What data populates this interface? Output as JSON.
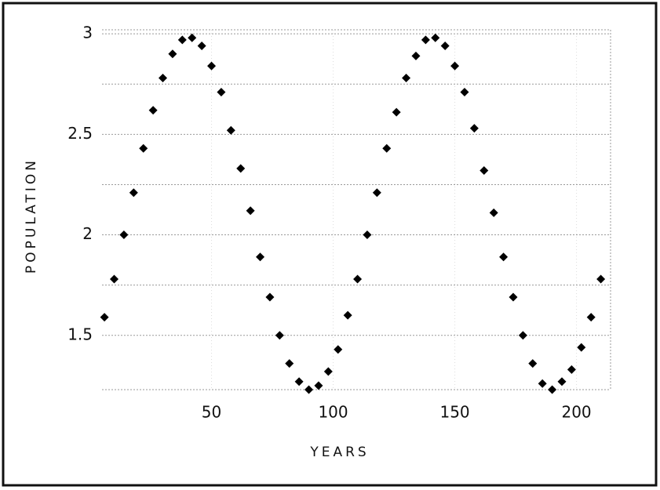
{
  "chart_data": {
    "type": "scatter",
    "xlabel": "YEARS",
    "ylabel": "POPULATION",
    "x": [
      6,
      10,
      14,
      18,
      22,
      26,
      30,
      34,
      38,
      42,
      46,
      50,
      54,
      58,
      62,
      66,
      70,
      74,
      78,
      82,
      86,
      90,
      94,
      98,
      102,
      106,
      110,
      114,
      118,
      122,
      126,
      130,
      134,
      138,
      142,
      146,
      150,
      154,
      158,
      162,
      166,
      170,
      174,
      178,
      182,
      186,
      190,
      194,
      198,
      202,
      206,
      210
    ],
    "series": [
      {
        "color": "#000000",
        "values": [
          1.59,
          1.78,
          2.0,
          2.21,
          2.43,
          2.62,
          2.78,
          2.9,
          2.97,
          2.98,
          2.94,
          2.84,
          2.71,
          2.52,
          2.33,
          2.12,
          1.89,
          1.69,
          1.5,
          1.36,
          1.27,
          1.23,
          1.25,
          1.32,
          1.43,
          1.6,
          1.78,
          2.0,
          2.21,
          2.43,
          2.61,
          2.78,
          2.89,
          2.97,
          2.98,
          2.94,
          2.84,
          2.71,
          2.53,
          2.32,
          2.11,
          1.89,
          1.69,
          1.5,
          1.36,
          1.26,
          1.23,
          1.27,
          1.33,
          1.44,
          1.59,
          1.78
        ]
      }
    ],
    "xlim": [
      5,
      214
    ],
    "ylim": [
      1.23,
      3.02
    ],
    "xticks": [
      50,
      100,
      150,
      200
    ],
    "yticks": [
      1.5,
      2,
      2.5,
      3
    ],
    "yminorticks": [
      1.75,
      2.25,
      2.75
    ],
    "grid": true
  }
}
